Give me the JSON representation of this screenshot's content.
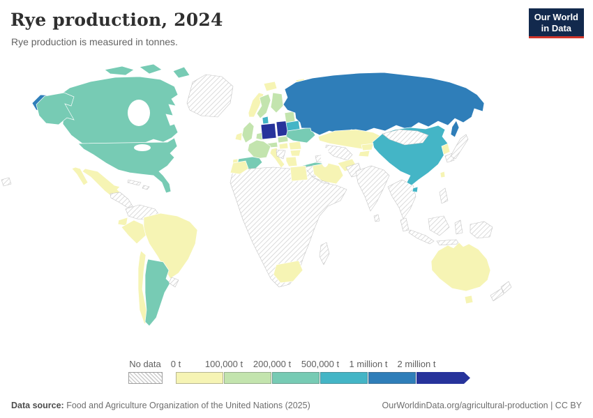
{
  "header": {
    "title": "Rye production, 2024",
    "subtitle": "Rye production is measured in tonnes."
  },
  "logo": {
    "line1": "Our World",
    "line2": "in Data",
    "bg_color": "#12294d",
    "accent_color": "#d0352a"
  },
  "legend": {
    "no_data_label": "No data",
    "tick_labels": [
      "0 t",
      "100,000 t",
      "200,000 t",
      "500,000 t",
      "1 million t",
      "2 million t"
    ]
  },
  "chart_data": {
    "type": "choropleth",
    "title": "Rye production, 2024",
    "unit": "tonnes",
    "bin_edges_tonnes": [
      0,
      100000,
      200000,
      500000,
      1000000,
      2000000
    ],
    "bin_color_order": [
      "#f6f4b4",
      "#c3e4ae",
      "#77cbb4",
      "#44b5c6",
      "#2f7eb9",
      "#27339b"
    ],
    "bin_colors": {
      "0-100k": "#f6f4b4",
      "100k-200k": "#c3e4ae",
      "200k-500k": "#77cbb4",
      "500k-1M": "#44b5c6",
      "1M-2M": "#2f7eb9",
      "2M+": "#27339b"
    },
    "no_data_stroke": "#c4c4c4",
    "country_stroke": "#ffffff",
    "countries": {
      "Germany": "2M+",
      "Poland": "2M+",
      "Russia": "1M-2M",
      "China": "500k-1M",
      "Denmark": "500k-1M",
      "Belarus": "500k-1M",
      "Canada": "200k-500k",
      "United States": "200k-500k",
      "Argentina": "200k-500k",
      "Spain": "200k-500k",
      "Ukraine": "200k-500k",
      "Turkey": "200k-500k",
      "United Kingdom": "100k-200k",
      "France": "100k-200k",
      "Sweden": "100k-200k",
      "Finland": "100k-200k",
      "Czechia": "100k-200k",
      "Austria": "100k-200k",
      "Netherlands": "100k-200k",
      "Baltic states": "100k-200k",
      "Norway": "0-100k",
      "Iceland": "0-100k",
      "Svalbard": "0-100k",
      "Ireland": "0-100k",
      "Portugal": "0-100k",
      "Switzerland": "0-100k",
      "Italy": "0-100k",
      "Hungary": "0-100k",
      "Romania": "0-100k",
      "Bulgaria": "0-100k",
      "Greece": "0-100k",
      "Mexico": "0-100k",
      "Ecuador": "0-100k",
      "Peru": "0-100k",
      "Brazil": "0-100k",
      "Chile": "0-100k",
      "Kazakhstan": "0-100k",
      "Kyrgyzstan": "0-100k",
      "Tajikistan": "0-100k",
      "Afghanistan": "0-100k",
      "Iran": "0-100k",
      "Egypt": "0-100k",
      "Morocco": "0-100k",
      "South Africa": "0-100k",
      "Australia": "0-100k",
      "North Korea": "0-100k",
      "Taiwan": "0-100k",
      "Greenland": "no-data",
      "Hawaii": "no-data",
      "Central America": "no-data",
      "Cuba": "no-data",
      "Hispaniola": "no-data",
      "Colombia and Venezuela": "no-data",
      "Uruguay": "no-data",
      "Western Balkans": "no-data",
      "Caucasus": "no-data",
      "Central Asia": "no-data",
      "Iraq and Levant": "no-data",
      "Arabian Peninsula": "no-data",
      "Africa (other)": "no-data",
      "Madagascar": "no-data",
      "Mongolia": "no-data",
      "India": "no-data",
      "Pakistan": "no-data",
      "Sri Lanka": "no-data",
      "Mainland Southeast Asia": "no-data",
      "Malay Peninsula": "no-data",
      "Sumatra": "no-data",
      "Java": "no-data",
      "Borneo": "no-data",
      "Sulawesi": "no-data",
      "New Guinea": "no-data",
      "Philippines": "no-data",
      "Japan": "no-data",
      "South Korea": "no-data",
      "New Zealand": "no-data"
    }
  },
  "footer": {
    "source_label": "Data source:",
    "source_text": "Food and Agriculture Organization of the United Nations (2025)",
    "right_text": "OurWorldinData.org/agricultural-production | CC BY"
  }
}
